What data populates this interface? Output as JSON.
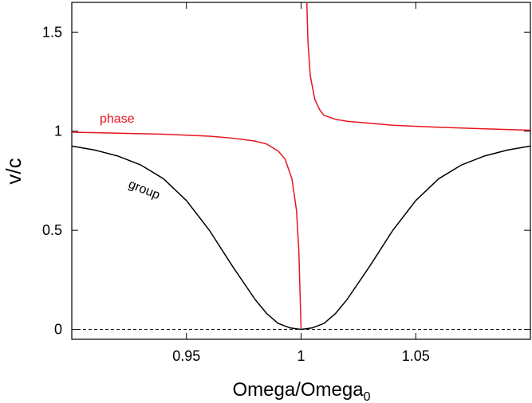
{
  "chart_data": {
    "type": "line",
    "title": "",
    "xlabel": "Omega/Omega",
    "xlabel_sub": "0",
    "ylabel": "v/c",
    "xlim": [
      0.9,
      1.1
    ],
    "ylim": [
      -0.05,
      1.65
    ],
    "xticks": [
      {
        "value": 0.95,
        "label": "0.95"
      },
      {
        "value": 1.0,
        "label": "1"
      },
      {
        "value": 1.05,
        "label": "1.05"
      }
    ],
    "yticks": [
      {
        "value": 0,
        "label": "0"
      },
      {
        "value": 0.5,
        "label": "0.5"
      },
      {
        "value": 1.0,
        "label": "1"
      },
      {
        "value": 1.5,
        "label": "1.5"
      }
    ],
    "reference_line": {
      "y": 0,
      "style": "dashed",
      "color": "#000000"
    },
    "series": [
      {
        "name": "phase",
        "color": "#e8141e",
        "label": "phase",
        "branches": [
          {
            "x": [
              0.9,
              0.92,
              0.94,
              0.96,
              0.97,
              0.98,
              0.985,
              0.99,
              0.993,
              0.996,
              0.998,
              0.999,
              0.9995,
              1.0
            ],
            "y": [
              0.995,
              0.99,
              0.985,
              0.975,
              0.965,
              0.95,
              0.935,
              0.9,
              0.86,
              0.76,
              0.6,
              0.4,
              0.2,
              0.0
            ]
          },
          {
            "x": [
              1.0025,
              1.003,
              1.004,
              1.006,
              1.008,
              1.01,
              1.015,
              1.02,
              1.03,
              1.04,
              1.06,
              1.08,
              1.1
            ],
            "y": [
              1.65,
              1.45,
              1.28,
              1.16,
              1.11,
              1.08,
              1.06,
              1.05,
              1.04,
              1.03,
              1.02,
              1.012,
              1.005
            ]
          }
        ]
      },
      {
        "name": "group",
        "color": "#000000",
        "label": "group",
        "x": [
          0.9,
          0.91,
          0.92,
          0.93,
          0.94,
          0.95,
          0.96,
          0.97,
          0.98,
          0.985,
          0.99,
          0.995,
          1.0,
          1.005,
          1.01,
          1.015,
          1.02,
          1.03,
          1.04,
          1.05,
          1.06,
          1.07,
          1.08,
          1.09,
          1.1
        ],
        "y": [
          0.925,
          0.905,
          0.875,
          0.83,
          0.76,
          0.65,
          0.5,
          0.32,
          0.15,
          0.08,
          0.03,
          0.008,
          0.0,
          0.008,
          0.03,
          0.08,
          0.15,
          0.32,
          0.5,
          0.65,
          0.76,
          0.83,
          0.875,
          0.905,
          0.925
        ]
      }
    ]
  }
}
